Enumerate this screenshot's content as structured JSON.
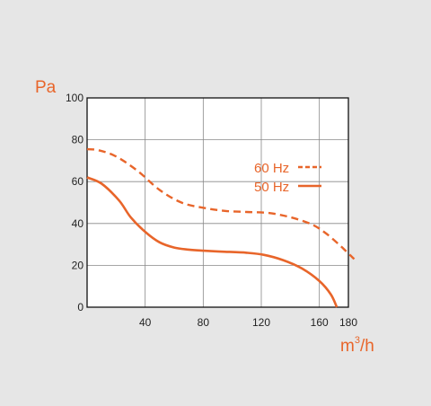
{
  "chart_data": {
    "type": "line",
    "ylabel": "Pa",
    "xlabel_base": "m",
    "xlabel_sup": "3",
    "xlabel_tail": "/h",
    "xlim": [
      0,
      180
    ],
    "ylim": [
      0,
      100
    ],
    "x_ticks": [
      "40",
      "80",
      "120",
      "160",
      "180"
    ],
    "y_ticks": [
      "0",
      "20",
      "40",
      "60",
      "80",
      "100"
    ],
    "grid": true,
    "legend_placement": "upper-right inside",
    "colors": {
      "series": "#e8652a",
      "grid": "#888888",
      "frame": "#111111",
      "plot_bg": "#ffffff"
    },
    "series": [
      {
        "name": "60 Hz",
        "style": "dashed",
        "x": [
          0,
          8,
          20,
          35,
          50,
          65,
          80,
          95,
          110,
          125,
          140,
          155,
          165,
          175,
          184
        ],
        "y": [
          75.5,
          75,
          72,
          65,
          56,
          50,
          47.5,
          46,
          45.5,
          45,
          43,
          39.5,
          35,
          29,
          23
        ]
      },
      {
        "name": "50 Hz",
        "style": "solid",
        "x": [
          0,
          10,
          22,
          30,
          40,
          50,
          60,
          70,
          80,
          95,
          110,
          122,
          135,
          148,
          160,
          168,
          172
        ],
        "y": [
          62,
          59,
          51,
          43,
          36,
          31,
          28.5,
          27.5,
          27,
          26.5,
          26,
          25,
          22.5,
          18.5,
          12.5,
          6,
          0
        ]
      }
    ]
  }
}
